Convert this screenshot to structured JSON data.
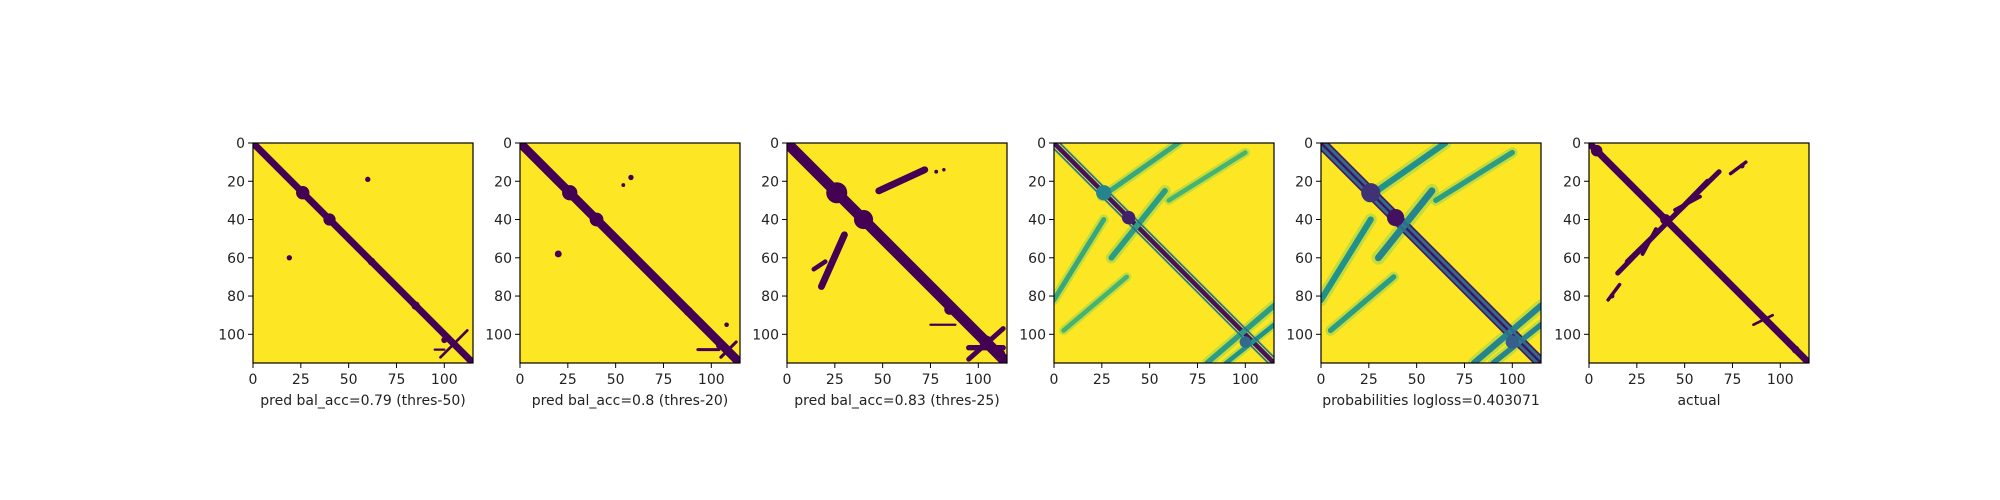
{
  "colors": {
    "background": "#fde725",
    "contact": "#440154",
    "viridis_mid": "#21918c",
    "viridis_light": "#5ec962"
  },
  "chart_data": [
    {
      "type": "heatmap",
      "id": "p1",
      "title": "",
      "xlabel": "pred bal_acc=0.79 (thres-50)",
      "ylabel": "",
      "xlim": [
        0,
        115
      ],
      "ylim": [
        115,
        0
      ],
      "xticks": [
        0,
        25,
        50,
        75,
        100
      ],
      "yticks": [
        0,
        20,
        40,
        60,
        80,
        100
      ],
      "colormap": "binary-viridis",
      "features": {
        "diagonal_width": 1.8,
        "blobs": [
          {
            "x": 26,
            "y": 26,
            "r": 3.5
          },
          {
            "x": 40,
            "y": 40,
            "r": 3.2
          },
          {
            "x": 60,
            "y": 19,
            "r": 1.4
          },
          {
            "x": 19,
            "y": 60,
            "r": 1.4
          },
          {
            "x": 62,
            "y": 62,
            "r": 2
          },
          {
            "x": 85,
            "y": 85,
            "r": 2.2
          },
          {
            "x": 100,
            "y": 103,
            "r": 1.6
          }
        ],
        "segments": [
          {
            "x1": 98,
            "y1": 112,
            "x2": 112,
            "y2": 98,
            "w": 0.7
          },
          {
            "x1": 95,
            "y1": 108,
            "x2": 100,
            "y2": 108,
            "w": 0.6
          }
        ]
      }
    },
    {
      "type": "heatmap",
      "id": "p2",
      "title": "",
      "xlabel": "pred bal_acc=0.8 (thres-20)",
      "ylabel": "",
      "xlim": [
        0,
        115
      ],
      "ylim": [
        115,
        0
      ],
      "xticks": [
        0,
        25,
        50,
        75,
        100
      ],
      "yticks": [
        0,
        20,
        40,
        60,
        80,
        100
      ],
      "colormap": "binary-viridis",
      "features": {
        "diagonal_width": 2.3,
        "blobs": [
          {
            "x": 26,
            "y": 26,
            "r": 4
          },
          {
            "x": 40,
            "y": 40,
            "r": 3.6
          },
          {
            "x": 58,
            "y": 18,
            "r": 1.4
          },
          {
            "x": 54,
            "y": 22,
            "r": 1
          },
          {
            "x": 20,
            "y": 58,
            "r": 1.8
          },
          {
            "x": 62,
            "y": 62,
            "r": 2.2
          },
          {
            "x": 88,
            "y": 88,
            "r": 2.4
          },
          {
            "x": 100,
            "y": 100,
            "r": 2
          },
          {
            "x": 104,
            "y": 106,
            "r": 1.5
          },
          {
            "x": 108,
            "y": 95,
            "r": 1.2
          }
        ],
        "segments": [
          {
            "x1": 93,
            "y1": 108,
            "x2": 104,
            "y2": 108,
            "w": 0.8
          },
          {
            "x1": 105,
            "y1": 112,
            "x2": 113,
            "y2": 104,
            "w": 0.8
          }
        ]
      }
    },
    {
      "type": "heatmap",
      "id": "p3",
      "title": "",
      "xlabel": "pred bal_acc=0.83 (thres-25)",
      "ylabel": "",
      "xlim": [
        0,
        115
      ],
      "ylim": [
        115,
        0
      ],
      "xticks": [
        0,
        25,
        50,
        75,
        100
      ],
      "yticks": [
        0,
        20,
        40,
        60,
        80,
        100
      ],
      "colormap": "binary-viridis",
      "features": {
        "diagonal_width": 2.8,
        "blobs": [
          {
            "x": 26,
            "y": 26,
            "r": 5.5
          },
          {
            "x": 40,
            "y": 40,
            "r": 5
          },
          {
            "x": 62,
            "y": 62,
            "r": 2.6
          },
          {
            "x": 85,
            "y": 87,
            "r": 2.8
          },
          {
            "x": 104,
            "y": 104,
            "r": 3.4
          },
          {
            "x": 112,
            "y": 110,
            "r": 2
          },
          {
            "x": 78,
            "y": 15,
            "r": 1
          },
          {
            "x": 82,
            "y": 14,
            "r": 0.9
          }
        ],
        "segments": [
          {
            "x1": 48,
            "y1": 25,
            "x2": 72,
            "y2": 14,
            "w": 1.8
          },
          {
            "x1": 18,
            "y1": 75,
            "x2": 30,
            "y2": 48,
            "w": 1.8
          },
          {
            "x1": 14,
            "y1": 66,
            "x2": 20,
            "y2": 62,
            "w": 1.2
          },
          {
            "x1": 95,
            "y1": 107,
            "x2": 113,
            "y2": 107,
            "w": 1.4
          },
          {
            "x1": 95,
            "y1": 113,
            "x2": 113,
            "y2": 97,
            "w": 1.3
          },
          {
            "x1": 97,
            "y1": 97,
            "x2": 113,
            "y2": 113,
            "w": 1.2
          },
          {
            "x1": 75,
            "y1": 95,
            "x2": 88,
            "y2": 95,
            "w": 0.6
          }
        ]
      }
    },
    {
      "type": "heatmap",
      "id": "p4",
      "title": "",
      "xlabel": "",
      "ylabel": "",
      "xlim": [
        0,
        115
      ],
      "ylim": [
        115,
        0
      ],
      "xticks": [
        0,
        25,
        50,
        75,
        100
      ],
      "yticks": [
        0,
        20,
        40,
        60,
        80,
        100
      ],
      "colormap": "viridis",
      "features": {
        "diagonal_width": 1.2,
        "blobs": [
          {
            "x": 26,
            "y": 26,
            "r": 4,
            "level": 0.45
          },
          {
            "x": 39,
            "y": 39,
            "r": 3.5,
            "level": 0.1
          },
          {
            "x": 100,
            "y": 104,
            "r": 3,
            "level": 0.35
          }
        ],
        "segments": [
          {
            "x1": 30,
            "y1": 60,
            "x2": 58,
            "y2": 25,
            "w": 1.5,
            "level": 0.55
          },
          {
            "x1": 25,
            "y1": 28,
            "x2": 65,
            "y2": 0,
            "w": 1.3,
            "level": 0.6
          },
          {
            "x1": 60,
            "y1": 30,
            "x2": 100,
            "y2": 5,
            "w": 1.2,
            "level": 0.65
          },
          {
            "x1": 0,
            "y1": 82,
            "x2": 26,
            "y2": 40,
            "w": 1.3,
            "level": 0.6
          },
          {
            "x1": 5,
            "y1": 98,
            "x2": 38,
            "y2": 70,
            "w": 1.2,
            "level": 0.65
          },
          {
            "x1": 80,
            "y1": 115,
            "x2": 115,
            "y2": 85,
            "w": 1.4,
            "level": 0.55
          },
          {
            "x1": 90,
            "y1": 115,
            "x2": 115,
            "y2": 95,
            "w": 1.2,
            "level": 0.5
          },
          {
            "x1": 3,
            "y1": 0,
            "x2": 115,
            "y2": 112,
            "w": 0.4,
            "level": 0.35
          },
          {
            "x1": 0,
            "y1": 3,
            "x2": 112,
            "y2": 115,
            "w": 0.4,
            "level": 0.35
          }
        ]
      }
    },
    {
      "type": "heatmap",
      "id": "p5",
      "title": "",
      "xlabel": "probabilities logloss=0.403071",
      "ylabel": "",
      "xlim": [
        0,
        115
      ],
      "ylim": [
        115,
        0
      ],
      "xticks": [
        0,
        25,
        50,
        75,
        100
      ],
      "yticks": [
        0,
        20,
        40,
        60,
        80,
        100
      ],
      "colormap": "viridis",
      "features": {
        "diagonal_width": 3,
        "blobs": [
          {
            "x": 26,
            "y": 26,
            "r": 5,
            "level": 0.15
          },
          {
            "x": 39,
            "y": 39,
            "r": 4.5,
            "level": 0.05
          },
          {
            "x": 100,
            "y": 104,
            "r": 3.5,
            "level": 0.3
          }
        ],
        "segments": [
          {
            "x1": 30,
            "y1": 60,
            "x2": 58,
            "y2": 25,
            "w": 1.8,
            "level": 0.45
          },
          {
            "x1": 25,
            "y1": 28,
            "x2": 65,
            "y2": 0,
            "w": 1.6,
            "level": 0.5
          },
          {
            "x1": 60,
            "y1": 30,
            "x2": 100,
            "y2": 5,
            "w": 1.4,
            "level": 0.55
          },
          {
            "x1": 0,
            "y1": 82,
            "x2": 26,
            "y2": 40,
            "w": 1.6,
            "level": 0.5
          },
          {
            "x1": 5,
            "y1": 98,
            "x2": 38,
            "y2": 70,
            "w": 1.4,
            "level": 0.55
          },
          {
            "x1": 80,
            "y1": 115,
            "x2": 115,
            "y2": 85,
            "w": 1.6,
            "level": 0.45
          },
          {
            "x1": 90,
            "y1": 115,
            "x2": 115,
            "y2": 95,
            "w": 1.4,
            "level": 0.45
          },
          {
            "x1": 2,
            "y1": 0,
            "x2": 115,
            "y2": 113,
            "w": 0.8,
            "level": 0.35
          },
          {
            "x1": 0,
            "y1": 2,
            "x2": 113,
            "y2": 115,
            "w": 0.8,
            "level": 0.35
          }
        ]
      }
    },
    {
      "type": "heatmap",
      "id": "p6",
      "title": "",
      "xlabel": "actual",
      "ylabel": "",
      "xlim": [
        0,
        115
      ],
      "ylim": [
        115,
        0
      ],
      "xticks": [
        0,
        25,
        50,
        75,
        100
      ],
      "yticks": [
        0,
        20,
        40,
        60,
        80,
        100
      ],
      "colormap": "binary-viridis",
      "features": {
        "diagonal_width": 1.8,
        "blobs": [
          {
            "x": 4,
            "y": 4,
            "r": 3
          },
          {
            "x": 40,
            "y": 40,
            "r": 2.8
          },
          {
            "x": 80,
            "y": 12,
            "r": 1.3
          },
          {
            "x": 12,
            "y": 80,
            "r": 1.3
          },
          {
            "x": 108,
            "y": 108,
            "r": 2
          }
        ],
        "segments": [
          {
            "x1": 20,
            "y1": 62,
            "x2": 68,
            "y2": 15,
            "w": 1.3
          },
          {
            "x1": 62,
            "y1": 20,
            "x2": 15,
            "y2": 68,
            "w": 1.3
          },
          {
            "x1": 45,
            "y1": 35,
            "x2": 58,
            "y2": 28,
            "w": 1
          },
          {
            "x1": 35,
            "y1": 45,
            "x2": 28,
            "y2": 58,
            "w": 1
          },
          {
            "x1": 10,
            "y1": 82,
            "x2": 16,
            "y2": 74,
            "w": 0.9
          },
          {
            "x1": 82,
            "y1": 10,
            "x2": 74,
            "y2": 16,
            "w": 0.9
          },
          {
            "x1": 86,
            "y1": 95,
            "x2": 96,
            "y2": 90,
            "w": 0.7
          }
        ]
      }
    }
  ]
}
